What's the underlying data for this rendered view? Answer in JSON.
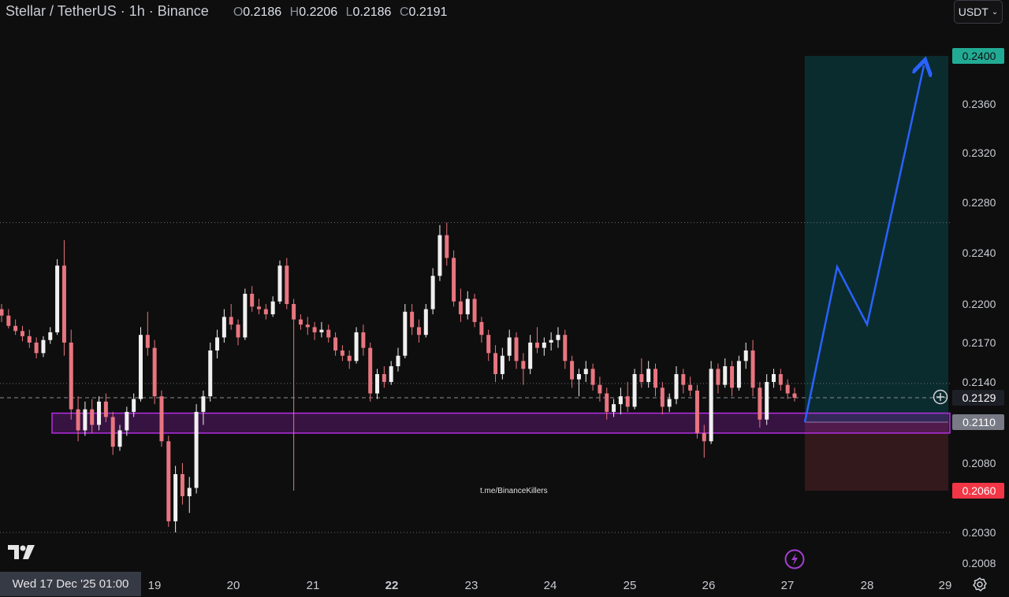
{
  "header": {
    "symbol": "Stellar / TetherUS · 1h · Binance",
    "ohlc": {
      "o_label": "O",
      "o": "0.2186",
      "h_label": "H",
      "h": "0.2206",
      "l_label": "L",
      "l": "0.2186",
      "c_label": "C",
      "c": "0.2191"
    },
    "currency": "USDT"
  },
  "watermark": "t.me/BinanceKillers",
  "cursor_date": "Wed 17 Dec '25   01:00",
  "icons": {
    "logo": "tradingview-logo-icon",
    "settings": "gear-icon",
    "alert": "lightning-icon",
    "add": "plus-circle-icon",
    "dropdown": "chevron-down-icon"
  },
  "colors": {
    "up": "#f0f0f0",
    "down": "#e8757f",
    "background": "#0e0e0e",
    "target_zone": "#0c2e30",
    "stop_zone": "#361a1e",
    "support_zone": "#a020c8",
    "arrow": "#2962ff",
    "target_label": "#22ab94",
    "stop_label": "#f23645",
    "entry_label": "#787b86"
  },
  "chart_data": {
    "type": "candlestick",
    "title": "Stellar / TetherUS · 1h · Binance",
    "y_ticks": [
      "0.2008",
      "0.2030",
      "0.2060",
      "0.2080",
      "0.2110",
      "0.2129",
      "0.2140",
      "0.2170",
      "0.2200",
      "0.2240",
      "0.2280",
      "0.2320",
      "0.2360",
      "0.2400"
    ],
    "x_ticks": [
      "19",
      "20",
      "21",
      "22",
      "23",
      "24",
      "25",
      "26",
      "27",
      "28",
      "29"
    ],
    "levels": {
      "target": "0.2400",
      "entry": "0.2110",
      "stop": "0.2060",
      "current": "0.2129"
    },
    "support_zone": [
      0.2102,
      0.2117
    ],
    "dotted_levels": [
      0.2264,
      0.2139,
      0.203
    ],
    "candles": [
      [
        0.2196,
        0.22,
        0.2186,
        0.2191
      ],
      [
        0.2191,
        0.2196,
        0.2181,
        0.2183
      ],
      [
        0.2183,
        0.2188,
        0.2176,
        0.2179
      ],
      [
        0.2179,
        0.2183,
        0.2171,
        0.2175
      ],
      [
        0.2175,
        0.218,
        0.2166,
        0.217
      ],
      [
        0.217,
        0.2174,
        0.2158,
        0.2162
      ],
      [
        0.2162,
        0.2175,
        0.2159,
        0.2172
      ],
      [
        0.2172,
        0.2182,
        0.2169,
        0.2178
      ],
      [
        0.2178,
        0.2235,
        0.2176,
        0.223
      ],
      [
        0.223,
        0.225,
        0.216,
        0.217
      ],
      [
        0.217,
        0.218,
        0.2112,
        0.212
      ],
      [
        0.212,
        0.213,
        0.2096,
        0.2104
      ],
      [
        0.2104,
        0.2126,
        0.21,
        0.212
      ],
      [
        0.212,
        0.2128,
        0.2102,
        0.2108
      ],
      [
        0.2108,
        0.213,
        0.2104,
        0.2126
      ],
      [
        0.2126,
        0.2132,
        0.211,
        0.2114
      ],
      [
        0.2114,
        0.2118,
        0.2086,
        0.2092
      ],
      [
        0.2092,
        0.2108,
        0.2089,
        0.2104
      ],
      [
        0.2104,
        0.2122,
        0.21,
        0.2118
      ],
      [
        0.2118,
        0.2132,
        0.2114,
        0.2128
      ],
      [
        0.2128,
        0.2182,
        0.2126,
        0.2176
      ],
      [
        0.2176,
        0.2194,
        0.216,
        0.2166
      ],
      [
        0.2166,
        0.2172,
        0.2124,
        0.213
      ],
      [
        0.213,
        0.2134,
        0.2092,
        0.2096
      ],
      [
        0.2096,
        0.21,
        0.2034,
        0.2038
      ],
      [
        0.2038,
        0.2078,
        0.203,
        0.2072
      ],
      [
        0.2072,
        0.208,
        0.205,
        0.2056
      ],
      [
        0.2056,
        0.207,
        0.2044,
        0.2062
      ],
      [
        0.2062,
        0.2124,
        0.2058,
        0.2118
      ],
      [
        0.2118,
        0.2134,
        0.2108,
        0.213
      ],
      [
        0.213,
        0.217,
        0.2126,
        0.2164
      ],
      [
        0.2164,
        0.218,
        0.2158,
        0.2174
      ],
      [
        0.2174,
        0.2196,
        0.217,
        0.219
      ],
      [
        0.219,
        0.22,
        0.218,
        0.2184
      ],
      [
        0.2184,
        0.2188,
        0.2168,
        0.2174
      ],
      [
        0.2174,
        0.2212,
        0.2172,
        0.2208
      ],
      [
        0.2208,
        0.2214,
        0.2194,
        0.2198
      ],
      [
        0.2198,
        0.2204,
        0.2192,
        0.2196
      ],
      [
        0.2196,
        0.22,
        0.2188,
        0.2192
      ],
      [
        0.2192,
        0.2206,
        0.219,
        0.2202
      ],
      [
        0.2202,
        0.2234,
        0.22,
        0.223
      ],
      [
        0.223,
        0.2236,
        0.2196,
        0.22
      ],
      [
        0.22,
        0.2204,
        0.206,
        0.2188
      ],
      [
        0.2188,
        0.2192,
        0.218,
        0.2184
      ],
      [
        0.2184,
        0.219,
        0.2176,
        0.2182
      ],
      [
        0.2182,
        0.2186,
        0.2172,
        0.2178
      ],
      [
        0.2178,
        0.2186,
        0.2174,
        0.218
      ],
      [
        0.218,
        0.2184,
        0.217,
        0.2174
      ],
      [
        0.2174,
        0.2178,
        0.216,
        0.2164
      ],
      [
        0.2164,
        0.2168,
        0.2156,
        0.216
      ],
      [
        0.216,
        0.2164,
        0.215,
        0.2156
      ],
      [
        0.2156,
        0.2182,
        0.2154,
        0.2178
      ],
      [
        0.2178,
        0.2184,
        0.216,
        0.2166
      ],
      [
        0.2166,
        0.217,
        0.2126,
        0.2132
      ],
      [
        0.2132,
        0.215,
        0.2128,
        0.2146
      ],
      [
        0.2146,
        0.2152,
        0.2136,
        0.214
      ],
      [
        0.214,
        0.2156,
        0.2138,
        0.2152
      ],
      [
        0.2152,
        0.2166,
        0.2148,
        0.216
      ],
      [
        0.216,
        0.22,
        0.2158,
        0.2194
      ],
      [
        0.2194,
        0.22,
        0.2176,
        0.2182
      ],
      [
        0.2182,
        0.2188,
        0.217,
        0.2176
      ],
      [
        0.2176,
        0.22,
        0.2174,
        0.2196
      ],
      [
        0.2196,
        0.2228,
        0.2192,
        0.2222
      ],
      [
        0.2222,
        0.2262,
        0.2218,
        0.2254
      ],
      [
        0.2254,
        0.2264,
        0.223,
        0.2236
      ],
      [
        0.2236,
        0.2242,
        0.2198,
        0.2202
      ],
      [
        0.2202,
        0.2212,
        0.2186,
        0.2192
      ],
      [
        0.2192,
        0.221,
        0.2188,
        0.2204
      ],
      [
        0.2204,
        0.2208,
        0.2182,
        0.2186
      ],
      [
        0.2186,
        0.219,
        0.217,
        0.2176
      ],
      [
        0.2176,
        0.218,
        0.2156,
        0.2162
      ],
      [
        0.2162,
        0.2168,
        0.214,
        0.2146
      ],
      [
        0.2146,
        0.2166,
        0.2142,
        0.216
      ],
      [
        0.216,
        0.218,
        0.2156,
        0.2174
      ],
      [
        0.2174,
        0.2178,
        0.215,
        0.2156
      ],
      [
        0.2156,
        0.2162,
        0.2138,
        0.215
      ],
      [
        0.215,
        0.2176,
        0.2146,
        0.217
      ],
      [
        0.217,
        0.2182,
        0.2162,
        0.2166
      ],
      [
        0.2166,
        0.2174,
        0.216,
        0.217
      ],
      [
        0.217,
        0.2178,
        0.2164,
        0.2172
      ],
      [
        0.2172,
        0.2182,
        0.2166,
        0.2176
      ],
      [
        0.2176,
        0.218,
        0.215,
        0.2156
      ],
      [
        0.2156,
        0.216,
        0.2136,
        0.2142
      ],
      [
        0.2142,
        0.215,
        0.213,
        0.2146
      ],
      [
        0.2146,
        0.2156,
        0.214,
        0.215
      ],
      [
        0.215,
        0.2154,
        0.2134,
        0.2138
      ],
      [
        0.2138,
        0.2144,
        0.2126,
        0.2132
      ],
      [
        0.2132,
        0.2136,
        0.2112,
        0.2118
      ],
      [
        0.2118,
        0.2128,
        0.2114,
        0.2124
      ],
      [
        0.2124,
        0.2136,
        0.2116,
        0.213
      ],
      [
        0.213,
        0.214,
        0.2118,
        0.2122
      ],
      [
        0.2122,
        0.215,
        0.212,
        0.2146
      ],
      [
        0.2146,
        0.2158,
        0.2136,
        0.214
      ],
      [
        0.214,
        0.2156,
        0.2136,
        0.215
      ],
      [
        0.215,
        0.2154,
        0.213,
        0.2136
      ],
      [
        0.2136,
        0.214,
        0.2116,
        0.2122
      ],
      [
        0.2122,
        0.2132,
        0.2118,
        0.2128
      ],
      [
        0.2128,
        0.2152,
        0.2124,
        0.2146
      ],
      [
        0.2146,
        0.215,
        0.2132,
        0.2138
      ],
      [
        0.2138,
        0.2144,
        0.213,
        0.2134
      ],
      [
        0.2134,
        0.2138,
        0.2098,
        0.2102
      ],
      [
        0.2102,
        0.2108,
        0.2084,
        0.2096
      ],
      [
        0.2096,
        0.2156,
        0.2094,
        0.215
      ],
      [
        0.215,
        0.2154,
        0.2132,
        0.2138
      ],
      [
        0.2138,
        0.2158,
        0.2136,
        0.2152
      ],
      [
        0.2152,
        0.2156,
        0.213,
        0.2136
      ],
      [
        0.2136,
        0.216,
        0.2134,
        0.2156
      ],
      [
        0.2156,
        0.217,
        0.215,
        0.2164
      ],
      [
        0.2164,
        0.2172,
        0.213,
        0.2136
      ],
      [
        0.2136,
        0.214,
        0.2106,
        0.2112
      ],
      [
        0.2112,
        0.2146,
        0.2108,
        0.214
      ],
      [
        0.214,
        0.215,
        0.2136,
        0.2146
      ],
      [
        0.2146,
        0.215,
        0.2134,
        0.2138
      ],
      [
        0.2138,
        0.2142,
        0.2128,
        0.2132
      ],
      [
        0.2132,
        0.2136,
        0.2126,
        0.2129
      ]
    ]
  }
}
